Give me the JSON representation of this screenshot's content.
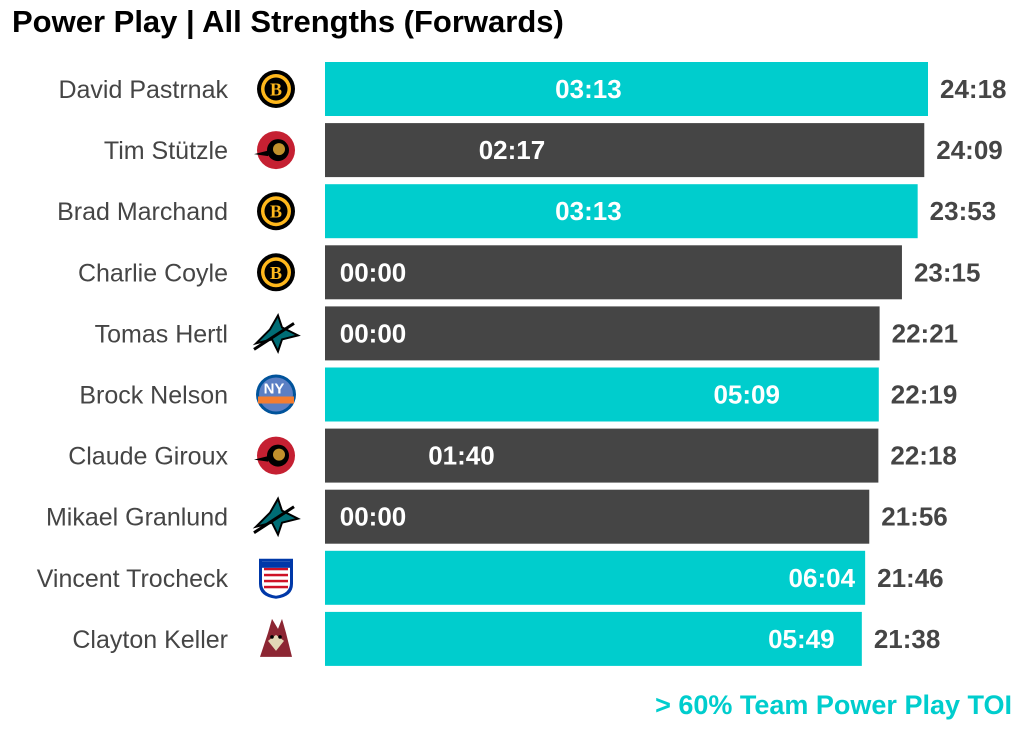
{
  "title": "Power Play | All Strengths (Forwards)",
  "footnote": "> 60% Team Power Play TOI",
  "colors": {
    "highlight": "#00CDCD",
    "normal": "#454545",
    "bar_label": "#ffffff",
    "total_label": "#454545",
    "player_name": "#454545",
    "footnote": "#00CDCD"
  },
  "chart_data": {
    "type": "bar",
    "orientation": "horizontal",
    "title": "Power Play | All Strengths (Forwards)",
    "annotation": "> 60% Team Power Play TOI",
    "categories": [
      "David Pastrnak",
      "Tim Stützle",
      "Brad Marchand",
      "Charlie Coyle",
      "Tomas Hertl",
      "Brock Nelson",
      "Claude Giroux",
      "Mikael Granlund",
      "Vincent Trocheck",
      "Clayton Keller"
    ],
    "teams": [
      "boston-bruins-logo",
      "ottawa-senators-logo",
      "boston-bruins-logo",
      "boston-bruins-logo",
      "san-jose-sharks-logo",
      "new-york-islanders-logo",
      "ottawa-senators-logo",
      "san-jose-sharks-logo",
      "new-york-rangers-logo",
      "arizona-coyotes-logo"
    ],
    "total_toi": [
      "24:18",
      "24:09",
      "23:53",
      "23:15",
      "22:21",
      "22:19",
      "22:18",
      "21:56",
      "21:46",
      "21:38"
    ],
    "pp_toi": [
      "03:13",
      "02:17",
      "03:13",
      "00:00",
      "00:00",
      "05:09",
      "01:40",
      "00:00",
      "06:04",
      "05:49"
    ],
    "highlighted": [
      true,
      false,
      true,
      false,
      false,
      true,
      false,
      false,
      true,
      true
    ],
    "xlim": [
      0,
      24.3
    ],
    "grid": false
  }
}
